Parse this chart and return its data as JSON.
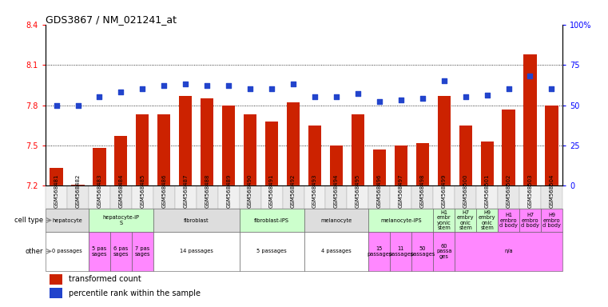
{
  "title": "GDS3867 / NM_021241_at",
  "samples": [
    "GSM568481",
    "GSM568482",
    "GSM568483",
    "GSM568484",
    "GSM568485",
    "GSM568486",
    "GSM568487",
    "GSM568488",
    "GSM568489",
    "GSM568490",
    "GSM568491",
    "GSM568492",
    "GSM568493",
    "GSM568494",
    "GSM568495",
    "GSM568496",
    "GSM568497",
    "GSM568498",
    "GSM568499",
    "GSM568500",
    "GSM568501",
    "GSM568502",
    "GSM568503",
    "GSM568504"
  ],
  "bar_values": [
    7.33,
    7.21,
    7.48,
    7.57,
    7.73,
    7.73,
    7.87,
    7.85,
    7.8,
    7.73,
    7.68,
    7.82,
    7.65,
    7.5,
    7.73,
    7.47,
    7.5,
    7.52,
    7.87,
    7.65,
    7.53,
    7.77,
    8.18,
    7.8
  ],
  "blue_pct": [
    50,
    50,
    55,
    58,
    60,
    62,
    63,
    62,
    62,
    60,
    60,
    63,
    55,
    55,
    57,
    52,
    53,
    54,
    65,
    55,
    56,
    60,
    68,
    60
  ],
  "ylim_left": [
    7.2,
    8.4
  ],
  "ylim_right": [
    0,
    100
  ],
  "yticks_left": [
    7.2,
    7.5,
    7.8,
    8.1,
    8.4
  ],
  "ytick_labels_left": [
    "7.2",
    "7.5",
    "7.8",
    "8.1",
    "8.4"
  ],
  "yticks_right": [
    0,
    25,
    50,
    75,
    100
  ],
  "ytick_labels_right": [
    "0",
    "25",
    "50",
    "75",
    "100%"
  ],
  "hlines": [
    7.5,
    7.8,
    8.1
  ],
  "bar_color": "#CC2200",
  "blue_color": "#2244CC",
  "cell_type_groups": [
    {
      "label": "hepatocyte",
      "start": 0,
      "end": 2,
      "color": "#DDDDDD"
    },
    {
      "label": "hepatocyte-iP\nS",
      "start": 2,
      "end": 5,
      "color": "#CCFFCC"
    },
    {
      "label": "fibroblast",
      "start": 5,
      "end": 9,
      "color": "#DDDDDD"
    },
    {
      "label": "fibroblast-IPS",
      "start": 9,
      "end": 12,
      "color": "#CCFFCC"
    },
    {
      "label": "melanocyte",
      "start": 12,
      "end": 15,
      "color": "#DDDDDD"
    },
    {
      "label": "melanocyte-IPS",
      "start": 15,
      "end": 18,
      "color": "#CCFFCC"
    },
    {
      "label": "H1\nembr\nyonic\nstem",
      "start": 18,
      "end": 19,
      "color": "#CCFFCC"
    },
    {
      "label": "H7\nembry\nonic\nstem",
      "start": 19,
      "end": 20,
      "color": "#CCFFCC"
    },
    {
      "label": "H9\nembry\nonic\nstem",
      "start": 20,
      "end": 21,
      "color": "#CCFFCC"
    },
    {
      "label": "H1\nembro\nd body",
      "start": 21,
      "end": 22,
      "color": "#FF88FF"
    },
    {
      "label": "H7\nembro\nd body",
      "start": 22,
      "end": 23,
      "color": "#FF88FF"
    },
    {
      "label": "H9\nembro\nd body",
      "start": 23,
      "end": 24,
      "color": "#FF88FF"
    }
  ],
  "other_groups": [
    {
      "label": "0 passages",
      "start": 0,
      "end": 2,
      "color": "#FFFFFF"
    },
    {
      "label": "5 pas\nsages",
      "start": 2,
      "end": 3,
      "color": "#FF88FF"
    },
    {
      "label": "6 pas\nsages",
      "start": 3,
      "end": 4,
      "color": "#FF88FF"
    },
    {
      "label": "7 pas\nsages",
      "start": 4,
      "end": 5,
      "color": "#FF88FF"
    },
    {
      "label": "14 passages",
      "start": 5,
      "end": 9,
      "color": "#FFFFFF"
    },
    {
      "label": "5 passages",
      "start": 9,
      "end": 12,
      "color": "#FFFFFF"
    },
    {
      "label": "4 passages",
      "start": 12,
      "end": 15,
      "color": "#FFFFFF"
    },
    {
      "label": "15\npassages",
      "start": 15,
      "end": 16,
      "color": "#FF88FF"
    },
    {
      "label": "11\npassages",
      "start": 16,
      "end": 17,
      "color": "#FF88FF"
    },
    {
      "label": "50\npassages",
      "start": 17,
      "end": 18,
      "color": "#FF88FF"
    },
    {
      "label": "60\npassa\nges",
      "start": 18,
      "end": 19,
      "color": "#FF88FF"
    },
    {
      "label": "n/a",
      "start": 19,
      "end": 24,
      "color": "#FF88FF"
    }
  ],
  "legend_items": [
    {
      "label": "transformed count",
      "color": "#CC2200"
    },
    {
      "label": "percentile rank within the sample",
      "color": "#2244CC"
    }
  ]
}
